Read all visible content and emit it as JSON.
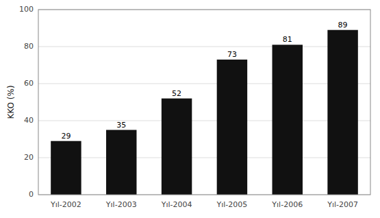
{
  "chart_data": {
    "type": "bar",
    "categories": [
      "Yıl-2002",
      "Yıl-2003",
      "Yıl-2004",
      "Yıl-2005",
      "Yıl-2006",
      "Yıl-2007"
    ],
    "values": [
      29,
      35,
      52,
      73,
      81,
      89
    ],
    "color": "#111111",
    "ylabel": "KKO (%)",
    "ylim": [
      0,
      100
    ],
    "yticks": [
      0,
      20,
      40,
      60,
      80,
      100
    ],
    "grid": true,
    "data_labels": true
  }
}
